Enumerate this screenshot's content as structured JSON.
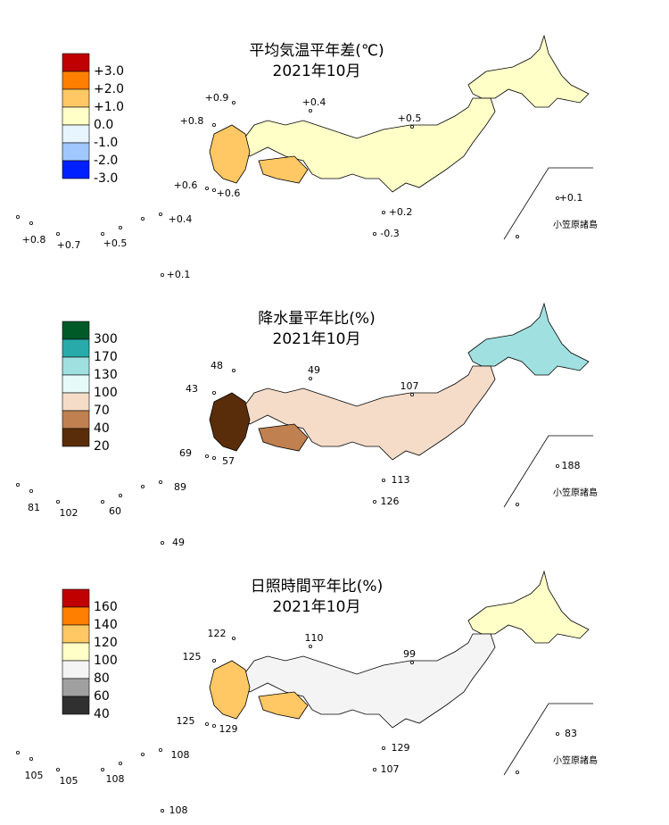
{
  "panels": [
    {
      "title": "平均気温平年差(℃)",
      "subtitle": "2021年10月",
      "legend_colors": [
        "#c00000",
        "#ff8000",
        "#ffc864",
        "#ffffc8",
        "#e6f5ff",
        "#a0c8ff",
        "#0020ff"
      ],
      "legend_labels": [
        "+3.0",
        "+2.0",
        "+1.0",
        "0.0",
        "-1.0",
        "-2.0",
        "-3.0"
      ],
      "stations": [
        "+0.9",
        "+0.4",
        "+0.8",
        "+0.5",
        "+0.6",
        "+0.6",
        "+0.1",
        "+0.2",
        "+0.4",
        "-0.3",
        "+0.8",
        "+0.7",
        "+0.5",
        "+0.1"
      ],
      "inset_label": "小笠原諸島"
    },
    {
      "title": "降水量平年比(%)",
      "subtitle": "2021年10月",
      "legend_colors": [
        "#005a28",
        "#28aaaa",
        "#a0e0e0",
        "#e6fafa",
        "#f5dcc8",
        "#c08050",
        "#5a2d0a"
      ],
      "legend_labels": [
        "300",
        "170",
        "130",
        "100",
        "70",
        "40",
        "20"
      ],
      "stations": [
        "48",
        "49",
        "43",
        "107",
        "69",
        "57",
        "188",
        "113",
        "89",
        "126",
        "81",
        "102",
        "60",
        "49"
      ],
      "inset_label": "小笠原諸島"
    },
    {
      "title": "日照時間平年比(%)",
      "subtitle": "2021年10月",
      "legend_colors": [
        "#c00000",
        "#ff8000",
        "#ffc864",
        "#ffffc8",
        "#f4f4f4",
        "#a0a0a0",
        "#303030"
      ],
      "legend_labels": [
        "160",
        "140",
        "120",
        "100",
        "80",
        "60",
        "40"
      ],
      "stations": [
        "122",
        "110",
        "125",
        "99",
        "125",
        "129",
        "83",
        "129",
        "108",
        "107",
        "105",
        "105",
        "108",
        "108"
      ],
      "inset_label": "小笠原諸島"
    }
  ]
}
